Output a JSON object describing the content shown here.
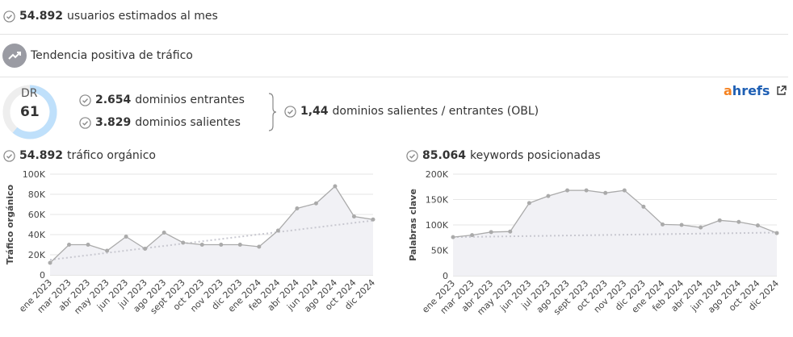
{
  "stats": {
    "monthly_users": {
      "value": "54.892",
      "label": "usuarios estimados al mes"
    },
    "trend": "Tendencia positiva de tráfico",
    "dr": {
      "label": "DR",
      "value": 61
    },
    "ref_domains": {
      "value": "2.654",
      "label": "dominios entrantes"
    },
    "out_domains": {
      "value": "3.829",
      "label": "dominios salientes"
    },
    "obl": {
      "value": "1,44",
      "label": "dominios salientes / entrantes (OBL)"
    },
    "brand": "ahrefs"
  },
  "chart_data": [
    {
      "type": "line",
      "title_value": "54.892",
      "title": "tráfico orgánico",
      "ylabel": "Tráfico orgánico",
      "color": "#aaaaaa",
      "categories": [
        "ene 2023",
        "mar 2023",
        "abr 2023",
        "may 2023",
        "jun 2023",
        "jul 2023",
        "ago 2023",
        "sept 2023",
        "oct 2023",
        "nov 2023",
        "dic 2023",
        "ene 2024",
        "feb 2024",
        "abr 2024",
        "jun 2024",
        "ago 2024",
        "oct 2024",
        "dic 2024"
      ],
      "values": [
        12000,
        30000,
        30000,
        24000,
        38000,
        26000,
        42000,
        32000,
        30000,
        30000,
        30000,
        28000,
        44000,
        66000,
        71000,
        88000,
        58000,
        55000
      ],
      "trend": [
        15000,
        54000
      ],
      "ylim": [
        0,
        100000
      ],
      "yticks": [
        0,
        {
          "value": 20000,
          "label": "20K"
        },
        {
          "value": 40000,
          "label": "40K"
        },
        {
          "value": 60000,
          "label": "60K"
        },
        {
          "value": 80000,
          "label": "80K"
        },
        {
          "value": 100000,
          "label": "100K"
        }
      ]
    },
    {
      "type": "line",
      "title_value": "85.064",
      "title": "keywords posicionadas",
      "ylabel": "Palabras clave",
      "color": "#aaaaaa",
      "categories": [
        "ene 2023",
        "mar 2023",
        "abr 2023",
        "may 2023",
        "jun 2023",
        "jul 2023",
        "ago 2023",
        "sept 2023",
        "oct 2023",
        "nov 2023",
        "dic 2023",
        "ene 2024",
        "feb 2024",
        "abr 2024",
        "jun 2024",
        "ago 2024",
        "oct 2024",
        "dic 2024"
      ],
      "values": [
        76000,
        80000,
        86000,
        87000,
        143000,
        157000,
        168000,
        168000,
        163000,
        168000,
        136000,
        101000,
        100000,
        95000,
        109000,
        106000,
        99000,
        84000
      ],
      "trend": [
        76000,
        85000
      ],
      "ylim": [
        0,
        200000
      ],
      "yticks": [
        0,
        {
          "value": 50000,
          "label": "50K"
        },
        {
          "value": 100000,
          "label": "100K"
        },
        {
          "value": 150000,
          "label": "150K"
        },
        {
          "value": 200000,
          "label": "200K"
        }
      ]
    }
  ]
}
